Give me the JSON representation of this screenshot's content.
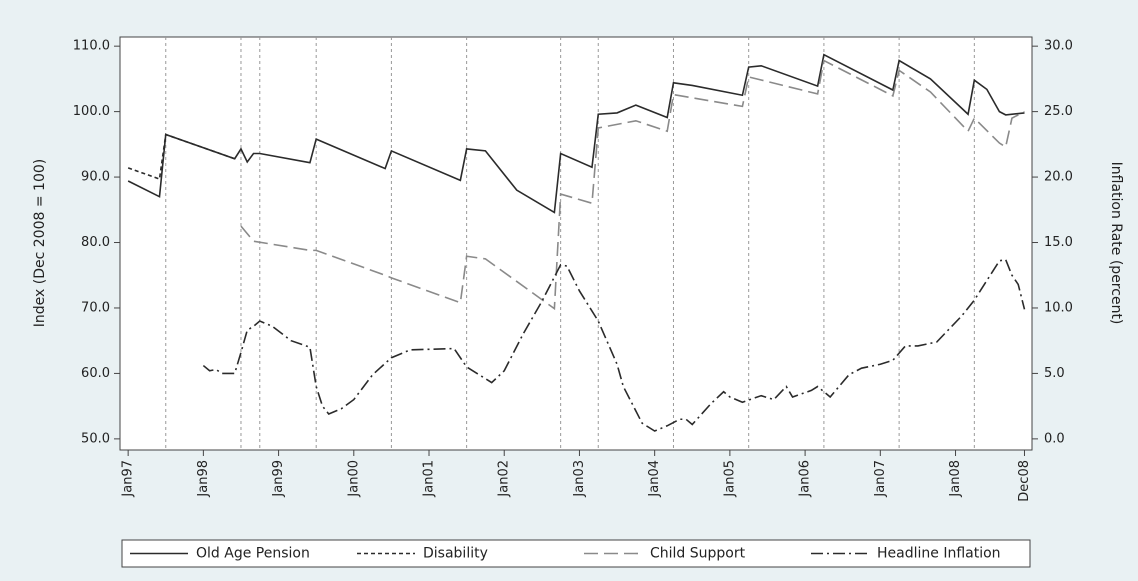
{
  "chart_data": {
    "type": "line",
    "y_label": "Index (Dec 2008 = 100)",
    "y2_label": "Inflation Rate (percent)",
    "xlim": [
      -1.3,
      144.2
    ],
    "xticks": [
      {
        "value": 0,
        "label": "Jan97"
      },
      {
        "value": 12,
        "label": "Jan98"
      },
      {
        "value": 24,
        "label": "Jan99"
      },
      {
        "value": 36,
        "label": "Jan00"
      },
      {
        "value": 48,
        "label": "Jan01"
      },
      {
        "value": 60,
        "label": "Jan02"
      },
      {
        "value": 72,
        "label": "Jan03"
      },
      {
        "value": 84,
        "label": "Jan04"
      },
      {
        "value": 96,
        "label": "Jan05"
      },
      {
        "value": 108,
        "label": "Jan06"
      },
      {
        "value": 120,
        "label": "Jan07"
      },
      {
        "value": 132,
        "label": "Jan08"
      },
      {
        "value": 143,
        "label": "Dec08"
      }
    ],
    "ylim": [
      48.3,
      111.4
    ],
    "yticks": [
      {
        "value": 50,
        "label": "50.0"
      },
      {
        "value": 60,
        "label": "60.0"
      },
      {
        "value": 70,
        "label": "70.0"
      },
      {
        "value": 80,
        "label": "80.0"
      },
      {
        "value": 90,
        "label": "90.0"
      },
      {
        "value": 100,
        "label": "100.0"
      },
      {
        "value": 110,
        "label": "110.0"
      }
    ],
    "y2lim": [
      -0.85,
      30.7
    ],
    "y2ticks": [
      {
        "value": 0,
        "label": "0.0"
      },
      {
        "value": 5,
        "label": "5.0"
      },
      {
        "value": 10,
        "label": "10.0"
      },
      {
        "value": 15,
        "label": "15.0"
      },
      {
        "value": 20,
        "label": "20.0"
      },
      {
        "value": 25,
        "label": "25.0"
      },
      {
        "value": 30,
        "label": "30.0"
      }
    ],
    "reference_lines_x": [
      6,
      18,
      21,
      30,
      42,
      54,
      69,
      75,
      87,
      99,
      111,
      123,
      135
    ],
    "legend": "bottom",
    "series": [
      {
        "name": "Old Age Pension",
        "color": "#2b2b2b",
        "line_style": "solid",
        "x": [
          0,
          5,
          6,
          17,
          18,
          19,
          20,
          21,
          29,
          30,
          41,
          42,
          53,
          54,
          57,
          62,
          68,
          69,
          74,
          75,
          78,
          81,
          86,
          87,
          90,
          98,
          99,
          101,
          110,
          111,
          122,
          123,
          128,
          134,
          135,
          137,
          139,
          140,
          143
        ],
        "values": [
          89.4,
          87.0,
          96.5,
          92.8,
          94.3,
          92.3,
          93.6,
          93.6,
          92.2,
          95.8,
          91.3,
          94.0,
          89.5,
          94.3,
          94.0,
          88.0,
          84.6,
          93.6,
          91.5,
          99.6,
          99.8,
          101.0,
          99.1,
          104.4,
          104.0,
          102.5,
          106.8,
          107.0,
          103.9,
          108.7,
          103.3,
          107.8,
          105.0,
          99.6,
          104.8,
          103.4,
          100.0,
          99.5,
          99.8
        ]
      },
      {
        "name": "Disability",
        "color": "#2b2b2b",
        "line_style": "dotted",
        "x": [
          0,
          5,
          6,
          17
        ],
        "values": [
          91.4,
          89.7,
          96.5,
          92.8
        ]
      },
      {
        "name": "Child Support",
        "color": "#8a8a8a",
        "line_style": "dashed",
        "x": [
          18,
          20,
          29,
          30,
          41,
          42,
          53,
          54,
          57,
          68,
          69,
          74,
          75,
          81,
          86,
          87,
          98,
          99,
          110,
          111,
          122,
          123,
          128,
          134,
          135,
          139,
          140,
          141,
          143
        ],
        "values": [
          82.5,
          80.2,
          78.8,
          78.8,
          75.0,
          74.6,
          70.8,
          77.9,
          77.5,
          69.9,
          87.4,
          86.0,
          97.5,
          98.6,
          97.0,
          102.6,
          100.8,
          105.3,
          102.7,
          107.8,
          102.4,
          106.3,
          103.0,
          97.0,
          99.0,
          95.2,
          94.6,
          99.0,
          100.0
        ]
      },
      {
        "name": "Headline Inflation",
        "color": "#2b2b2b",
        "line_style": "dashdot",
        "axis": "y2",
        "x": [
          12,
          13,
          14,
          15,
          17,
          18,
          19,
          20,
          21,
          23,
          26,
          29,
          30,
          31,
          32,
          34,
          36,
          39,
          42,
          45,
          52,
          54,
          58,
          60,
          63,
          66,
          69,
          70,
          72,
          75,
          78,
          79,
          82,
          84,
          86,
          88,
          89,
          90,
          93,
          95,
          96,
          98,
          101,
          103,
          105,
          106,
          109,
          110,
          112,
          115,
          117,
          120,
          122,
          124,
          126,
          129,
          133,
          135,
          137,
          139,
          140,
          141,
          142,
          143
        ],
        "values": [
          5.6,
          5.2,
          5.3,
          5.0,
          5.0,
          6.6,
          8.3,
          8.6,
          9.0,
          8.6,
          7.5,
          7.0,
          4.0,
          2.5,
          1.9,
          2.3,
          3.0,
          4.9,
          6.2,
          6.8,
          6.9,
          5.5,
          4.3,
          5.2,
          8.0,
          10.5,
          13.3,
          13.2,
          11.3,
          9.0,
          5.7,
          4.0,
          1.2,
          0.6,
          1.0,
          1.5,
          1.5,
          1.1,
          2.7,
          3.6,
          3.2,
          2.8,
          3.3,
          3.0,
          4.0,
          3.2,
          3.7,
          4.0,
          3.2,
          4.9,
          5.4,
          5.7,
          6.0,
          7.1,
          7.1,
          7.4,
          9.4,
          10.6,
          12.1,
          13.6,
          13.7,
          12.5,
          11.8,
          9.9
        ]
      }
    ]
  }
}
